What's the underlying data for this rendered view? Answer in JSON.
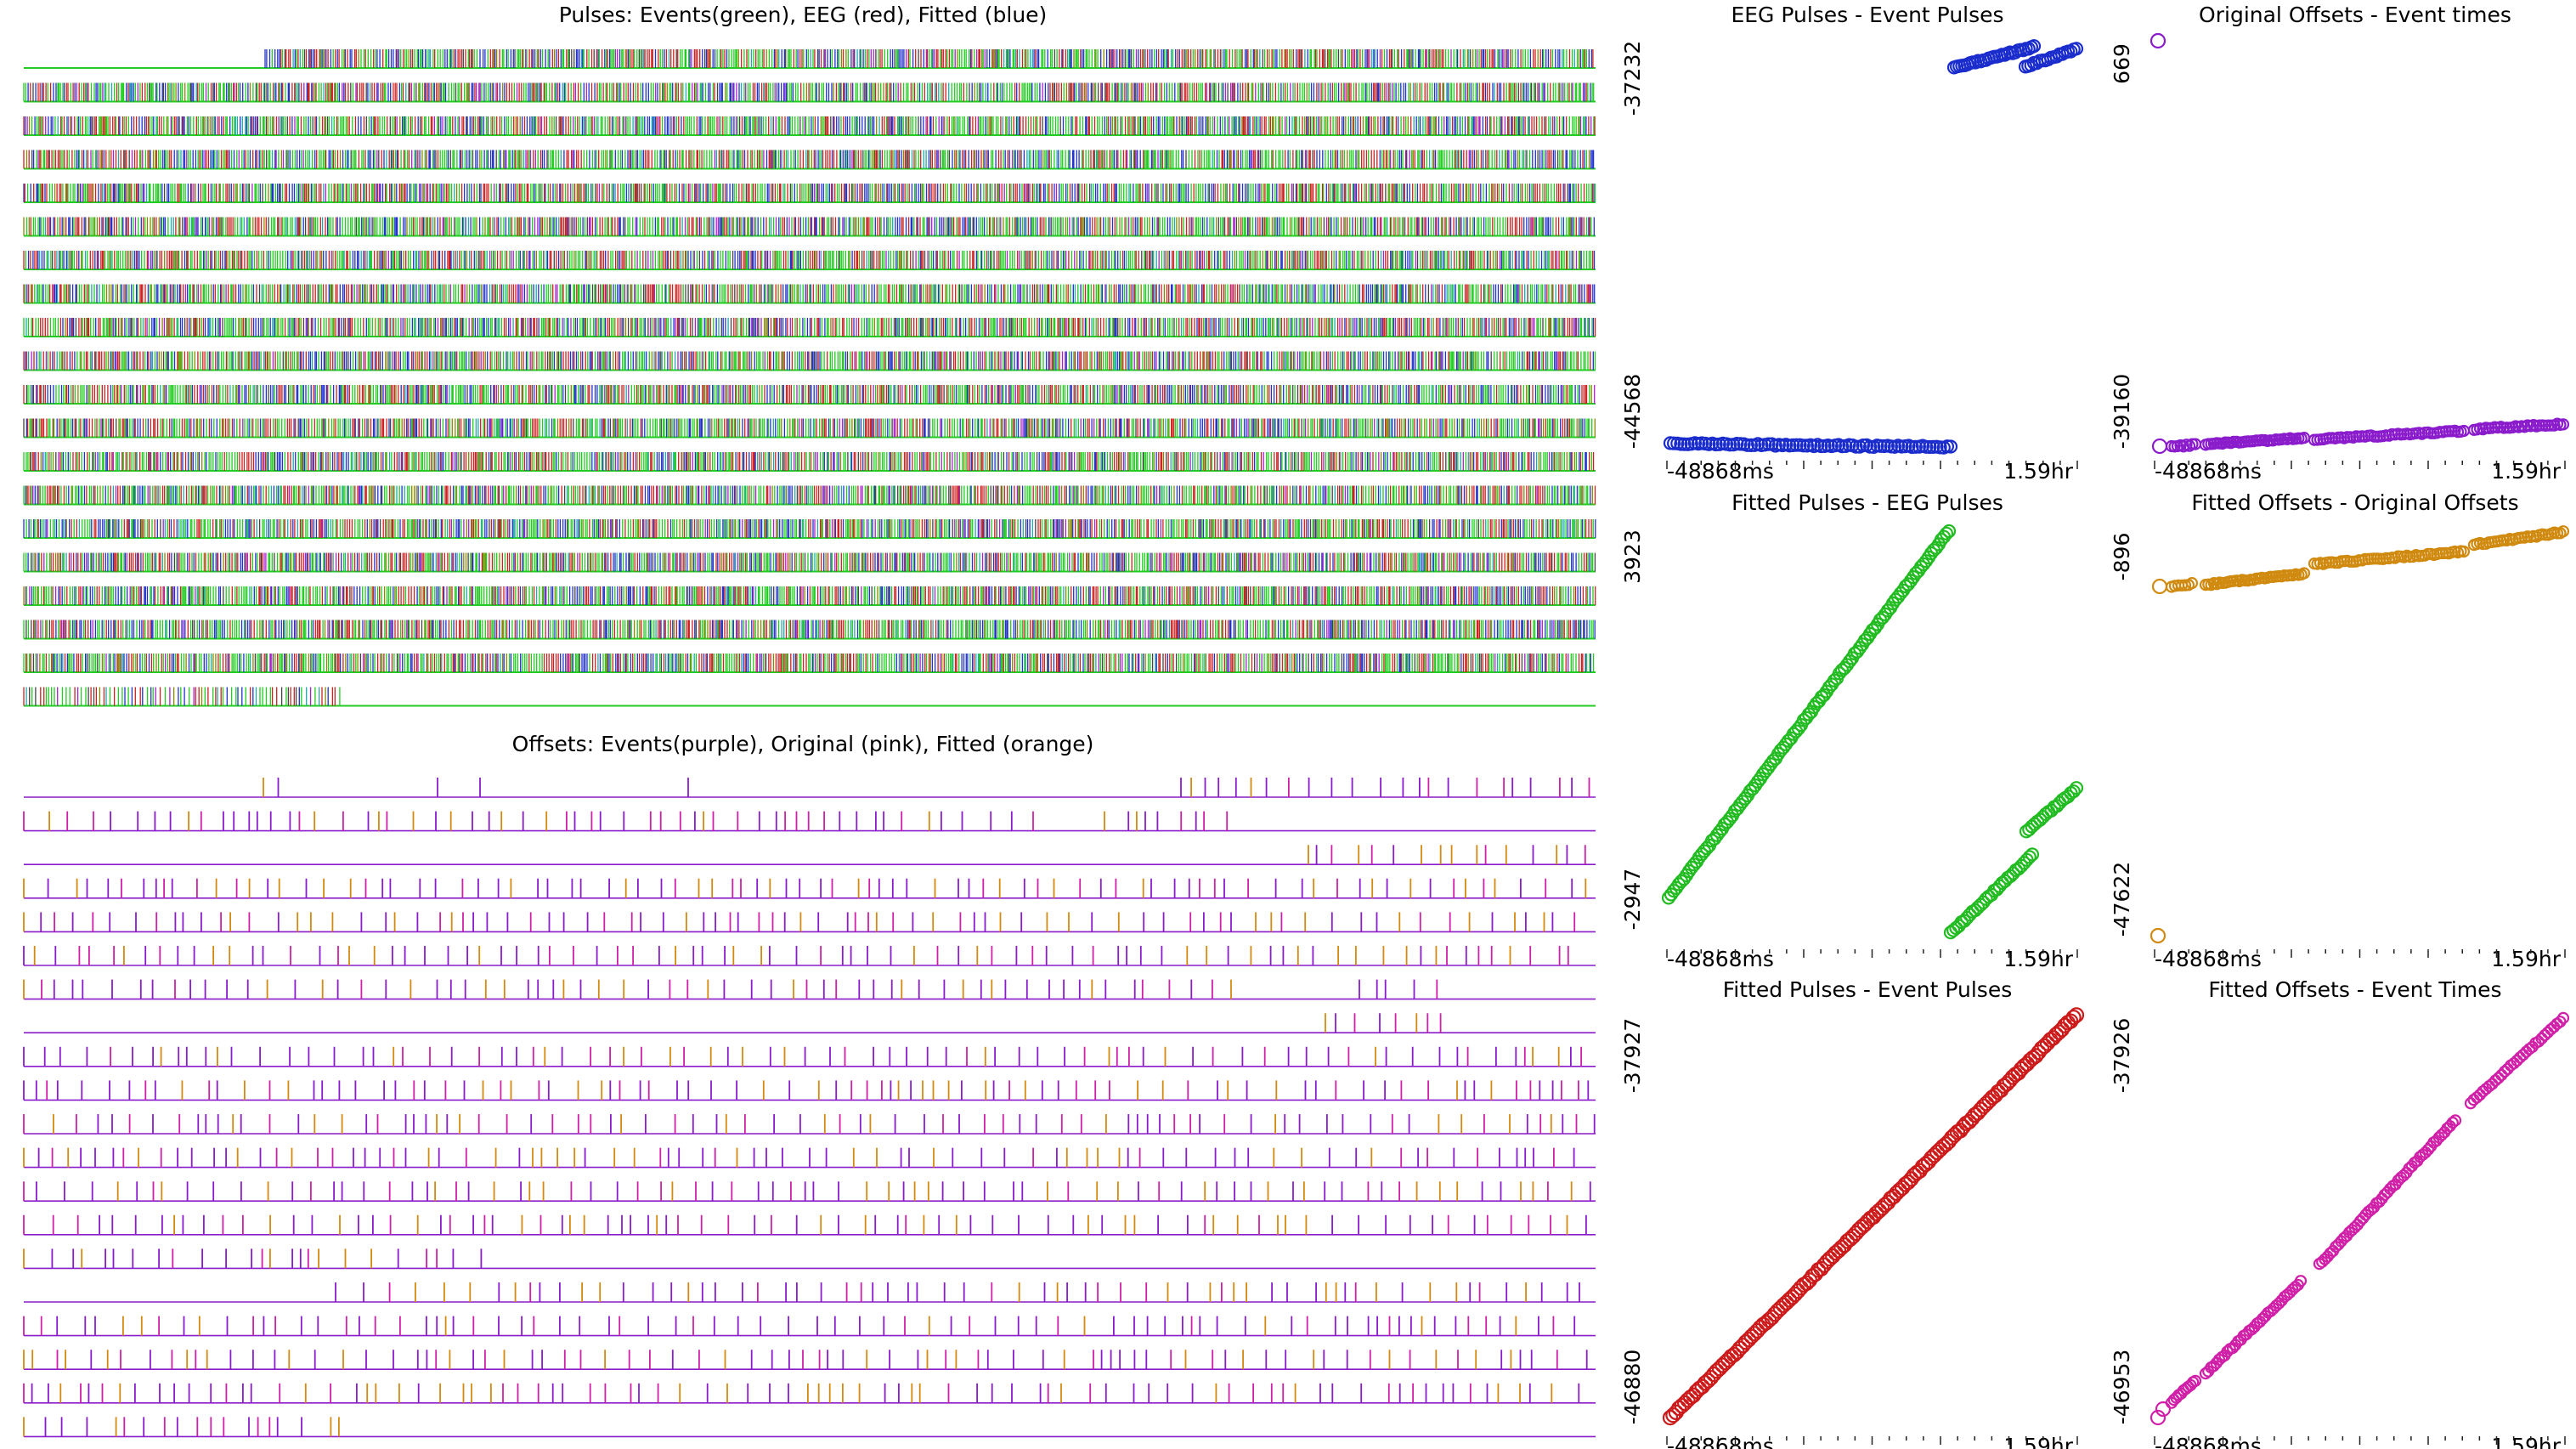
{
  "chart_data": [
    {
      "type": "scatter",
      "panel": "pulse-rasters",
      "title": "Pulses: Events(green), EEG (red), Fitted (blue)",
      "rows": 20,
      "series": [
        {
          "name": "Events",
          "color": "#22cc22"
        },
        {
          "name": "EEG",
          "color": "#cc2222"
        },
        {
          "name": "Fitted",
          "color": "#2233cc"
        }
      ],
      "xlabel": "",
      "ylabel": ""
    },
    {
      "type": "scatter",
      "panel": "offset-rasters",
      "title": "Offsets: Events(purple), Original (pink), Fitted (orange)",
      "rows": 20,
      "series": [
        {
          "name": "Events",
          "color": "#8a1ccc"
        },
        {
          "name": "Original",
          "color": "#d020a8"
        },
        {
          "name": "Fitted",
          "color": "#d48a10"
        }
      ],
      "xlabel": "",
      "ylabel": ""
    },
    {
      "type": "scatter",
      "title": "EEG Pulses - Event Pulses",
      "xtick_labels": [
        "-48868ms",
        "1.59hr"
      ],
      "ytick_labels": [
        "-44568",
        "-37232"
      ],
      "ylim": [
        -44568,
        -37232
      ],
      "color": "#1a2ccc",
      "segments": [
        {
          "x": [
            0.0,
            0.7
          ],
          "y": [
            -44568,
            -44568
          ]
        },
        {
          "x": [
            0.69,
            0.83
          ],
          "y": [
            -37232,
            -37232
          ],
          "y2": [
            -37232,
            -37232
          ]
        }
      ]
    },
    {
      "type": "scatter",
      "title": "Original Offsets - Event times",
      "xtick_labels": [
        "-48868ms",
        "1.59hr"
      ],
      "ytick_labels": [
        "-39160",
        "669"
      ],
      "ylim": [
        -39160,
        669
      ],
      "color": "#8a1ccc"
    },
    {
      "type": "scatter",
      "title": "Fitted Pulses - EEG Pulses",
      "xtick_labels": [
        "-48868ms",
        "1.59hr"
      ],
      "ytick_labels": [
        "-2947",
        "3923"
      ],
      "ylim": [
        -2947,
        3923
      ],
      "color": "#22bb22"
    },
    {
      "type": "scatter",
      "title": "Fitted Offsets - Original Offsets",
      "xtick_labels": [
        "-48868ms",
        "1.59hr"
      ],
      "ytick_labels": [
        "-47622",
        "-896"
      ],
      "ylim": [
        -47622,
        -896
      ],
      "color": "#d08a10"
    },
    {
      "type": "scatter",
      "title": "Fitted Pulses - Event Pulses",
      "xtick_labels": [
        "-48868ms",
        "1.59hr"
      ],
      "ytick_labels": [
        "-46880",
        "-37927"
      ],
      "ylim": [
        -46880,
        -37927
      ],
      "color": "#cc1a1a"
    },
    {
      "type": "scatter",
      "title": "Fitted Offsets - Event Times",
      "xtick_labels": [
        "-48868ms",
        "1.59hr"
      ],
      "ytick_labels": [
        "-46953",
        "-37926"
      ],
      "ylim": [
        -46953,
        -37926
      ],
      "color": "#d020a8"
    }
  ]
}
